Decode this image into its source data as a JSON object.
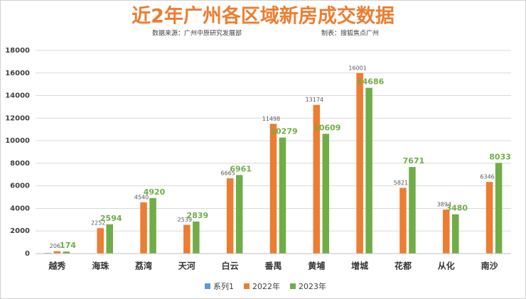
{
  "chart_data": {
    "type": "bar",
    "title": "近2年广州各区域新房成交数据",
    "subtitle": "数据来源：广州中原研究发展部",
    "credit": "制表：搜狐焦点广州",
    "categories": [
      "越秀",
      "海珠",
      "荔湾",
      "天河",
      "白云",
      "番禺",
      "黄埔",
      "增城",
      "花都",
      "从化",
      "南沙"
    ],
    "series": [
      {
        "name": "系列1",
        "color": "#5b9bd5",
        "show_labels": false,
        "values": [
          60,
          null,
          null,
          null,
          null,
          null,
          null,
          null,
          null,
          null,
          null
        ]
      },
      {
        "name": "2022年",
        "color": "#ed7d31",
        "show_labels": true,
        "values": [
          206,
          2252,
          4540,
          2539,
          6665,
          11498,
          13174,
          16001,
          5821,
          3894,
          6346
        ]
      },
      {
        "name": "2023年",
        "color": "#70ad47",
        "show_labels": true,
        "values": [
          174,
          2594,
          4920,
          2839,
          6961,
          10279,
          10609,
          14686,
          7671,
          3480,
          8033
        ]
      }
    ],
    "ylim": [
      0,
      18000
    ],
    "yticks": [
      0,
      2000,
      4000,
      6000,
      8000,
      10000,
      12000,
      14000,
      16000,
      18000
    ],
    "grid": true,
    "legend": "bottom"
  }
}
